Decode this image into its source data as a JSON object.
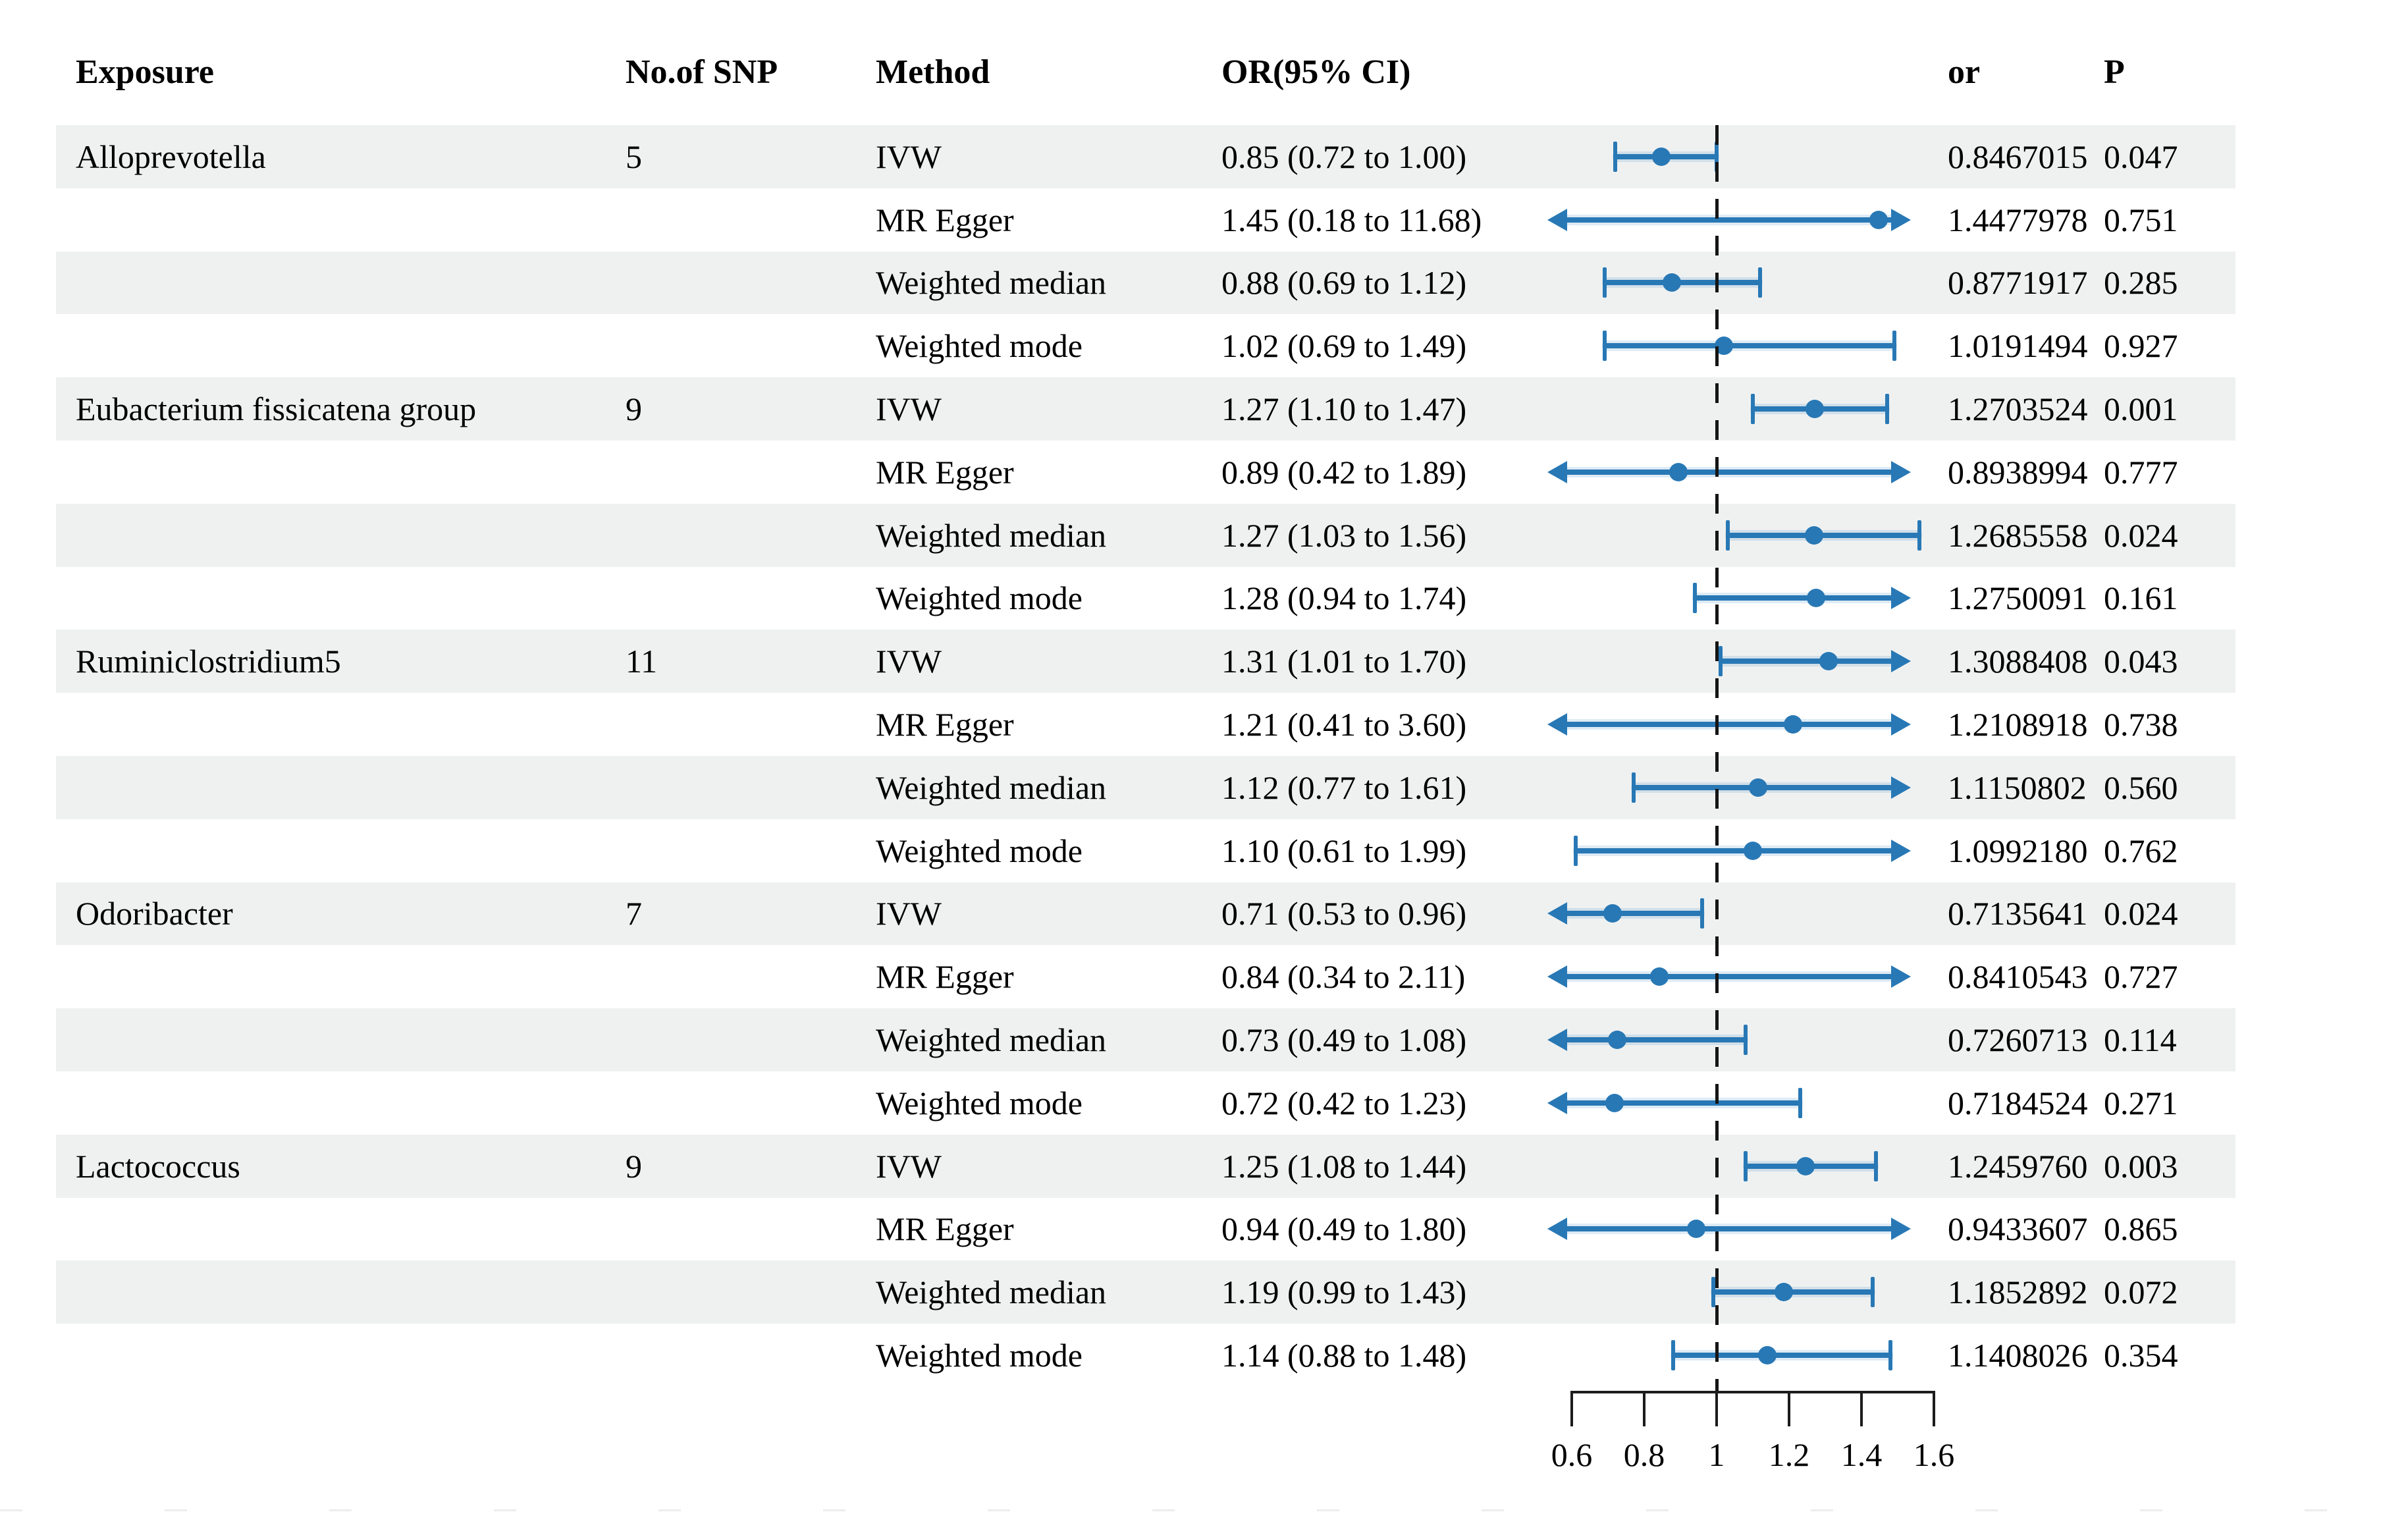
{
  "header": {
    "exposure": "Exposure",
    "snp": "No.of SNP",
    "method": "Method",
    "orci": "OR(95% CI)",
    "or": "or",
    "p": "P"
  },
  "colors": {
    "marker_blue": "#2878b5",
    "row_shade": "#eff1f1",
    "axis_black": "#1c1c1c"
  },
  "axis": {
    "tick_labels": [
      "0.6",
      "0.8",
      "1",
      "1.2",
      "1.4",
      "1.6"
    ],
    "tick_values": [
      0.6,
      0.8,
      1.0,
      1.2,
      1.4,
      1.6
    ],
    "reference_line": 1.0
  },
  "rows": [
    {
      "exposure": "Alloprevotella",
      "snp": "5",
      "method": "IVW",
      "orci": "0.85 (0.72 to 1.00)",
      "or": "0.8467015",
      "p": "0.047",
      "est": 0.8467015,
      "lo": 0.72,
      "hi": 1.0
    },
    {
      "exposure": "",
      "snp": "",
      "method": "MR Egger",
      "orci": "1.45 (0.18 to 11.68)",
      "or": "1.4477978",
      "p": "0.751",
      "est": 1.4477978,
      "lo": 0.18,
      "hi": 11.68
    },
    {
      "exposure": "",
      "snp": "",
      "method": "Weighted median",
      "orci": "0.88 (0.69 to 1.12)",
      "or": "0.8771917",
      "p": "0.285",
      "est": 0.8771917,
      "lo": 0.69,
      "hi": 1.12
    },
    {
      "exposure": "",
      "snp": "",
      "method": "Weighted mode",
      "orci": "1.02 (0.69 to 1.49)",
      "or": "1.0191494",
      "p": "0.927",
      "est": 1.0191494,
      "lo": 0.69,
      "hi": 1.49
    },
    {
      "exposure": "Eubacterium fissicatena group",
      "snp": "9",
      "method": "IVW",
      "orci": "1.27 (1.10 to 1.47)",
      "or": "1.2703524",
      "p": "0.001",
      "est": 1.2703524,
      "lo": 1.1,
      "hi": 1.47
    },
    {
      "exposure": "",
      "snp": "",
      "method": "MR Egger",
      "orci": "0.89 (0.42 to 1.89)",
      "or": "0.8938994",
      "p": "0.777",
      "est": 0.8938994,
      "lo": 0.42,
      "hi": 1.89
    },
    {
      "exposure": "",
      "snp": "",
      "method": "Weighted median",
      "orci": "1.27 (1.03 to 1.56)",
      "or": "1.2685558",
      "p": "0.024",
      "est": 1.2685558,
      "lo": 1.03,
      "hi": 1.56
    },
    {
      "exposure": "",
      "snp": "",
      "method": "Weighted mode",
      "orci": "1.28 (0.94 to 1.74)",
      "or": "1.2750091",
      "p": "0.161",
      "est": 1.2750091,
      "lo": 0.94,
      "hi": 1.74
    },
    {
      "exposure": "Ruminiclostridium5",
      "snp": "11",
      "method": "IVW",
      "orci": "1.31 (1.01 to 1.70)",
      "or": "1.3088408",
      "p": "0.043",
      "est": 1.3088408,
      "lo": 1.01,
      "hi": 1.7
    },
    {
      "exposure": "",
      "snp": "",
      "method": "MR Egger",
      "orci": "1.21 (0.41 to 3.60)",
      "or": "1.2108918",
      "p": "0.738",
      "est": 1.2108918,
      "lo": 0.41,
      "hi": 3.6
    },
    {
      "exposure": "",
      "snp": "",
      "method": "Weighted median",
      "orci": "1.12 (0.77 to 1.61)",
      "or": "1.1150802",
      "p": "0.560",
      "est": 1.1150802,
      "lo": 0.77,
      "hi": 1.61
    },
    {
      "exposure": "",
      "snp": "",
      "method": "Weighted mode",
      "orci": "1.10 (0.61 to 1.99)",
      "or": "1.0992180",
      "p": "0.762",
      "est": 1.099218,
      "lo": 0.61,
      "hi": 1.99
    },
    {
      "exposure": "Odoribacter",
      "snp": "7",
      "method": "IVW",
      "orci": "0.71 (0.53 to 0.96)",
      "or": "0.7135641",
      "p": "0.024",
      "est": 0.7135641,
      "lo": 0.53,
      "hi": 0.96
    },
    {
      "exposure": "",
      "snp": "",
      "method": "MR Egger",
      "orci": "0.84 (0.34 to 2.11)",
      "or": "0.8410543",
      "p": "0.727",
      "est": 0.8410543,
      "lo": 0.34,
      "hi": 2.11
    },
    {
      "exposure": "",
      "snp": "",
      "method": "Weighted median",
      "orci": "0.73 (0.49 to 1.08)",
      "or": "0.7260713",
      "p": "0.114",
      "est": 0.7260713,
      "lo": 0.49,
      "hi": 1.08
    },
    {
      "exposure": "",
      "snp": "",
      "method": "Weighted mode",
      "orci": "0.72 (0.42 to 1.23)",
      "or": "0.7184524",
      "p": "0.271",
      "est": 0.7184524,
      "lo": 0.42,
      "hi": 1.23
    },
    {
      "exposure": "Lactococcus",
      "snp": "9",
      "method": "IVW",
      "orci": "1.25 (1.08 to 1.44)",
      "or": "1.2459760",
      "p": "0.003",
      "est": 1.245976,
      "lo": 1.08,
      "hi": 1.44
    },
    {
      "exposure": "",
      "snp": "",
      "method": "MR Egger",
      "orci": "0.94 (0.49 to 1.80)",
      "or": "0.9433607",
      "p": "0.865",
      "est": 0.9433607,
      "lo": 0.49,
      "hi": 1.8
    },
    {
      "exposure": "",
      "snp": "",
      "method": "Weighted median",
      "orci": "1.19 (0.99 to 1.43)",
      "or": "1.1852892",
      "p": "0.072",
      "est": 1.1852892,
      "lo": 0.99,
      "hi": 1.43
    },
    {
      "exposure": "",
      "snp": "",
      "method": "Weighted mode",
      "orci": "1.14 (0.88 to 1.48)",
      "or": "1.1408026",
      "p": "0.354",
      "est": 1.1408026,
      "lo": 0.88,
      "hi": 1.48
    }
  ],
  "chart_data": {
    "type": "scatter",
    "plot_kind": "forest",
    "title": "",
    "xlabel": "",
    "ylabel": "",
    "xlim": [
      0.6,
      1.6
    ],
    "xticks": [
      0.6,
      0.8,
      1.0,
      1.2,
      1.4,
      1.6
    ],
    "reference_line": 1.0,
    "grid": false,
    "legend": "none",
    "groups": [
      {
        "exposure": "Alloprevotella",
        "n_snp": 5,
        "methods": [
          "IVW",
          "MR Egger",
          "Weighted median",
          "Weighted mode"
        ],
        "or": [
          0.8467015,
          1.4477978,
          0.8771917,
          1.0191494
        ],
        "ci_low": [
          0.72,
          0.18,
          0.69,
          0.69
        ],
        "ci_high": [
          1.0,
          11.68,
          1.12,
          1.49
        ],
        "p": [
          0.047,
          0.751,
          0.285,
          0.927
        ]
      },
      {
        "exposure": "Eubacterium fissicatena group",
        "n_snp": 9,
        "methods": [
          "IVW",
          "MR Egger",
          "Weighted median",
          "Weighted mode"
        ],
        "or": [
          1.2703524,
          0.8938994,
          1.2685558,
          1.2750091
        ],
        "ci_low": [
          1.1,
          0.42,
          1.03,
          0.94
        ],
        "ci_high": [
          1.47,
          1.89,
          1.56,
          1.74
        ],
        "p": [
          0.001,
          0.777,
          0.024,
          0.161
        ]
      },
      {
        "exposure": "Ruminiclostridium5",
        "n_snp": 11,
        "methods": [
          "IVW",
          "MR Egger",
          "Weighted median",
          "Weighted mode"
        ],
        "or": [
          1.3088408,
          1.2108918,
          1.1150802,
          1.099218
        ],
        "ci_low": [
          1.01,
          0.41,
          0.77,
          0.61
        ],
        "ci_high": [
          1.7,
          3.6,
          1.61,
          1.99
        ],
        "p": [
          0.043,
          0.738,
          0.56,
          0.762
        ]
      },
      {
        "exposure": "Odoribacter",
        "n_snp": 7,
        "methods": [
          "IVW",
          "MR Egger",
          "Weighted median",
          "Weighted mode"
        ],
        "or": [
          0.7135641,
          0.8410543,
          0.7260713,
          0.7184524
        ],
        "ci_low": [
          0.53,
          0.34,
          0.49,
          0.42
        ],
        "ci_high": [
          0.96,
          2.11,
          1.08,
          1.23
        ],
        "p": [
          0.024,
          0.727,
          0.114,
          0.271
        ]
      },
      {
        "exposure": "Lactococcus",
        "n_snp": 9,
        "methods": [
          "IVW",
          "MR Egger",
          "Weighted median",
          "Weighted mode"
        ],
        "or": [
          1.245976,
          0.9433607,
          1.1852892,
          1.1408026
        ],
        "ci_low": [
          1.08,
          0.49,
          0.99,
          0.88
        ],
        "ci_high": [
          1.44,
          1.8,
          1.43,
          1.48
        ],
        "p": [
          0.003,
          0.865,
          0.072,
          0.354
        ]
      }
    ]
  }
}
